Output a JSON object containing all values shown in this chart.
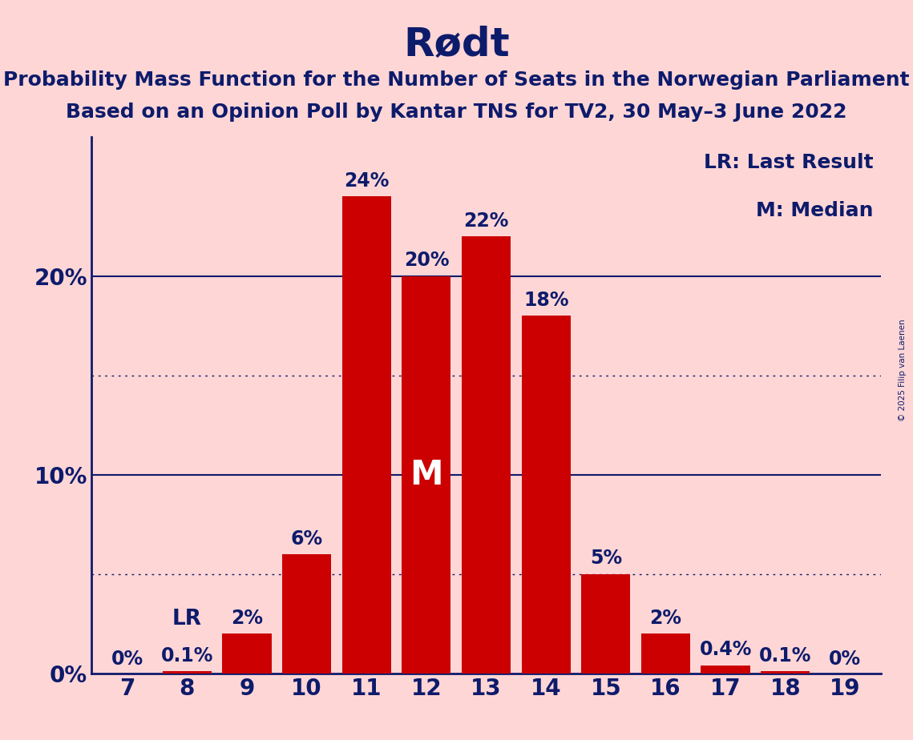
{
  "title": "Rødt",
  "subtitle1": "Probability Mass Function for the Number of Seats in the Norwegian Parliament",
  "subtitle2": "Based on an Opinion Poll by Kantar TNS for TV2, 30 May–3 June 2022",
  "copyright": "© 2025 Filip van Laenen",
  "legend_lr": "LR: Last Result",
  "legend_m": "M: Median",
  "categories": [
    7,
    8,
    9,
    10,
    11,
    12,
    13,
    14,
    15,
    16,
    17,
    18,
    19
  ],
  "values": [
    0.0,
    0.1,
    2.0,
    6.0,
    24.0,
    20.0,
    22.0,
    18.0,
    5.0,
    2.0,
    0.4,
    0.1,
    0.0
  ],
  "bar_color": "#CC0000",
  "background_color": "#FFD6D6",
  "text_color": "#0D1B6B",
  "bar_labels": [
    "0%",
    "0.1%",
    "2%",
    "6%",
    "24%",
    "20%",
    "22%",
    "18%",
    "5%",
    "2%",
    "0.4%",
    "0.1%",
    "0%"
  ],
  "lr_seat": 8,
  "median_seat": 12,
  "ylim": [
    0,
    27
  ],
  "solid_yticks": [
    10,
    20
  ],
  "dotted_yticks": [
    5,
    15
  ],
  "title_fontsize": 36,
  "subtitle_fontsize": 18,
  "label_fontsize": 17,
  "tick_fontsize": 20,
  "legend_fontsize": 18,
  "median_label_color": "#FFFFFF",
  "median_label_fontsize": 30
}
